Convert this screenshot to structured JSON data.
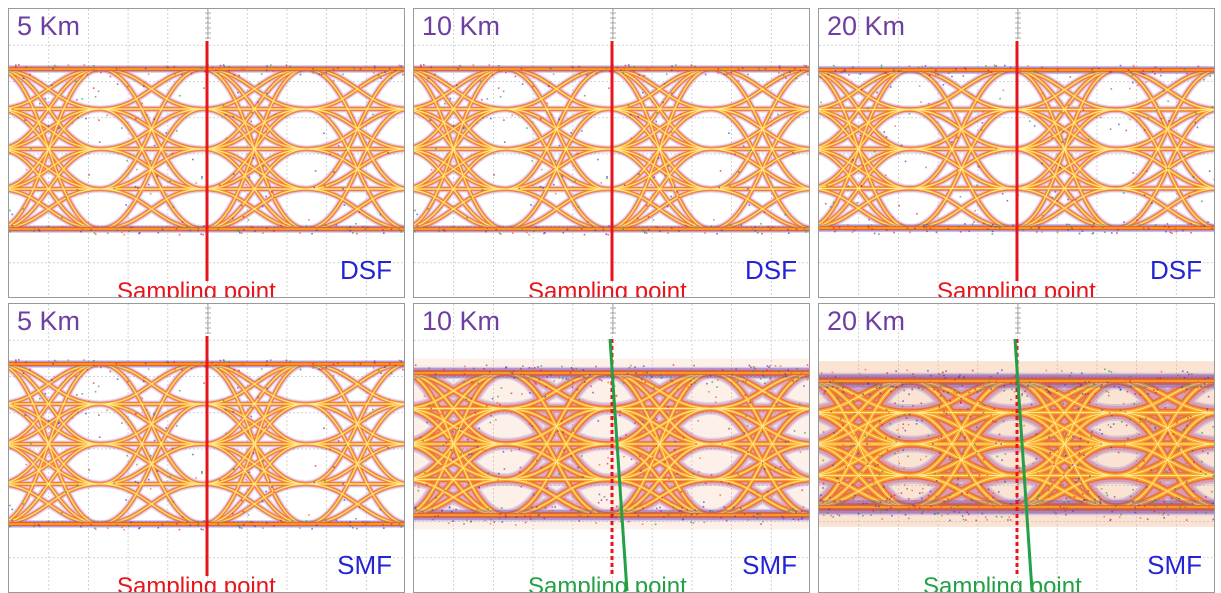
{
  "panels": [
    {
      "id": "p1",
      "distance": "5 Km",
      "fiber": "DSF",
      "sampling_label": "Sampling point",
      "sampling_color": "#e8141c",
      "tilted_line": false,
      "eye_degradation": 0.0
    },
    {
      "id": "p2",
      "distance": "10 Km",
      "fiber": "DSF",
      "sampling_label": "Sampling point",
      "sampling_color": "#e8141c",
      "tilted_line": false,
      "eye_degradation": 0.0
    },
    {
      "id": "p3",
      "distance": "20 Km",
      "fiber": "DSF",
      "sampling_label": "Sampling point",
      "sampling_color": "#e8141c",
      "tilted_line": false,
      "eye_degradation": 0.05
    },
    {
      "id": "p4",
      "distance": "5 Km",
      "fiber": "SMF",
      "sampling_label": "Sampling point",
      "sampling_color": "#e8141c",
      "tilted_line": false,
      "eye_degradation": 0.0
    },
    {
      "id": "p5",
      "distance": "10 Km",
      "fiber": "SMF",
      "sampling_label": "Sampling point",
      "sampling_color": "#22a046",
      "tilted_line": true,
      "eye_degradation": 0.45
    },
    {
      "id": "p6",
      "distance": "20 Km",
      "fiber": "SMF",
      "sampling_label": "Sampling point",
      "sampling_color": "#22a046",
      "tilted_line": true,
      "eye_degradation": 0.85
    }
  ],
  "colors": {
    "distance_label": "#6d3fa0",
    "fiber_label": "#2424d6",
    "red_line": "#e8141c",
    "green_line": "#22a046",
    "trace_core": "#fff2a0",
    "trace_mid": "#ffb020",
    "trace_outer": "#f06020",
    "noise_red": "#d61a4a",
    "noise_blue": "#3a3ad0",
    "noise_green": "#2a9a40",
    "grid": "#c8c8c8"
  }
}
